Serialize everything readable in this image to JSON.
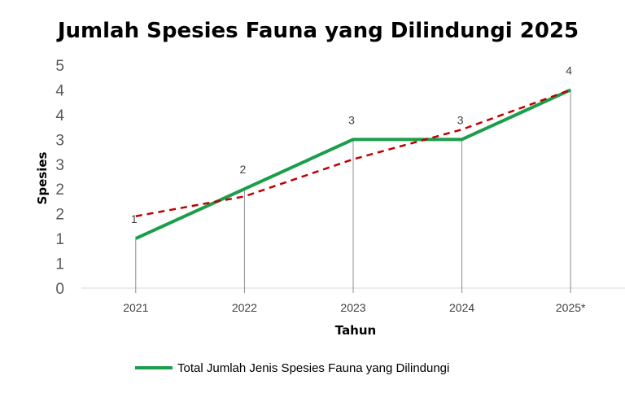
{
  "chart_data": {
    "type": "line",
    "title": "Jumlah Spesies Fauna yang Dilindungi 2025",
    "xlabel": "Tahun",
    "ylabel": "Spesies",
    "categories": [
      "2021",
      "2022",
      "2023",
      "2024",
      "2025*"
    ],
    "series": [
      {
        "name": "Total Jumlah Jenis Spesies Fauna yang Dilindungi",
        "values": [
          1,
          2,
          3,
          3,
          4
        ],
        "data_labels": [
          "1",
          "2",
          "3",
          "3",
          "4"
        ],
        "color": "#1a9e4a"
      }
    ],
    "trendline": {
      "style": "dashed",
      "color": "#c00000",
      "values": [
        1.45,
        1.85,
        2.6,
        3.2,
        4.0
      ]
    },
    "ylim": [
      0,
      4.5
    ],
    "y_tick_values": [
      0,
      0.5,
      1,
      1.5,
      2,
      2.5,
      3,
      3.5,
      4,
      4.5
    ],
    "y_tick_labels": [
      "0",
      "1",
      "1",
      "2",
      "2",
      "3",
      "3",
      "4",
      "4",
      "5"
    ],
    "drop_lines": true,
    "grid": false,
    "legend_position": "bottom"
  }
}
